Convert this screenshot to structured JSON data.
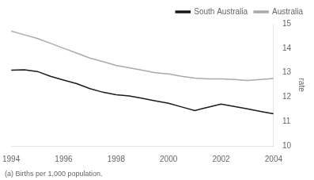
{
  "chart_data": {
    "type": "line",
    "ylabel": "rate",
    "footnote": "(a) Births per 1,000 population.",
    "series": [
      {
        "name": "South Australia",
        "color": "#1a1a1a",
        "x": [
          1994,
          1994.5,
          1995,
          1995.5,
          1996,
          1996.5,
          1997,
          1997.5,
          1998,
          1998.5,
          1999,
          1999.5,
          2000,
          2000.5,
          2001,
          2001.25,
          2001.75,
          2002,
          2002.5,
          2003,
          2003.5,
          2004
        ],
        "values": [
          13.1,
          13.12,
          13.05,
          12.85,
          12.7,
          12.55,
          12.35,
          12.2,
          12.1,
          12.05,
          11.95,
          11.85,
          11.75,
          11.6,
          11.45,
          11.52,
          11.65,
          11.72,
          11.62,
          11.52,
          11.42,
          11.32
        ]
      },
      {
        "name": "Australia",
        "color": "#aaaaaa",
        "x": [
          1994,
          1994.5,
          1995,
          1995.5,
          1996,
          1996.5,
          1997,
          1997.5,
          1998,
          1998.5,
          1999,
          1999.5,
          2000,
          2000.5,
          2001,
          2001.5,
          2002,
          2002.5,
          2003,
          2003.5,
          2004
        ],
        "values": [
          14.7,
          14.55,
          14.4,
          14.2,
          14.0,
          13.8,
          13.6,
          13.45,
          13.3,
          13.2,
          13.1,
          13.0,
          12.95,
          12.85,
          12.78,
          12.75,
          12.75,
          12.72,
          12.68,
          12.72,
          12.76
        ]
      }
    ],
    "xlim": [
      1994,
      2004
    ],
    "xticks": [
      1994,
      1996,
      1998,
      2000,
      2002,
      2004
    ],
    "ylim": [
      10,
      15
    ],
    "yticks": [
      10,
      11,
      12,
      13,
      14,
      15
    ],
    "grid": false,
    "legend": "upper right"
  }
}
